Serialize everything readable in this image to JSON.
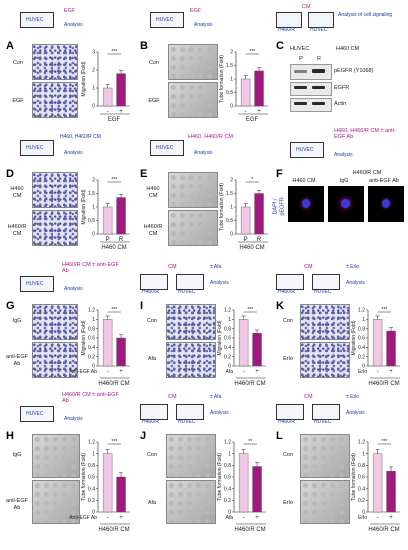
{
  "schematics": {
    "A": {
      "stim": "EGF",
      "cell": "HUVEC",
      "out": "Analysis"
    },
    "B": {
      "stim": "EGF",
      "cell": "HUVEC",
      "out": "Analysis"
    },
    "C": {
      "stim": "CM",
      "cell1": "H460/R",
      "cell2": "HUVEC",
      "out": "Analysis of cell signaling"
    },
    "D": {
      "stim": "H460, H460/R CM",
      "cell": "HUVEC",
      "out": "Analysis"
    },
    "E": {
      "stim": "H460, H460/R CM",
      "cell": "HUVEC",
      "out": "Analysis"
    },
    "F": {
      "stim": "H460, H460/R CM ± anti-EGF Ab",
      "cell": "HUVEC",
      "out": "Analysis"
    },
    "G": {
      "stim": "H460/R CM ± anti-EGF Ab",
      "cell": "HUVEC",
      "out": "Analysis"
    },
    "I": {
      "stim": "CM",
      "drug": "± Afa",
      "cell1": "H460/R",
      "cell2": "HUVEC",
      "out": "Analysis"
    },
    "K": {
      "stim": "CM",
      "drug": "± Erlo",
      "cell1": "H460/R",
      "cell2": "HUVEC",
      "out": "Analysis"
    },
    "H": {
      "stim": "H460/R CM ± anti-EGF Ab",
      "cell": "HUVEC",
      "out": "Analysis"
    },
    "J": {
      "stim": "CM",
      "drug": "± Afa",
      "cell1": "H460/R",
      "cell2": "HUVEC",
      "out": "Analysis"
    },
    "L": {
      "stim": "CM",
      "drug": "± Erlo",
      "cell1": "H460/R",
      "cell2": "HUVEC",
      "out": "Analysis"
    }
  },
  "panels": {
    "A": {
      "letter": "A",
      "rows": [
        "Con",
        "EGF"
      ]
    },
    "B": {
      "letter": "B",
      "rows": [
        "Con",
        "EGF"
      ]
    },
    "C": {
      "letter": "C",
      "title": "H460 CM",
      "lanes": [
        "P",
        "R"
      ],
      "rows": [
        "pEGFR (Y1068)",
        "EGFR",
        "Actin"
      ],
      "label": "HUVEC"
    },
    "D": {
      "letter": "D",
      "rows": [
        "H460\nCM",
        "H460/R\nCM"
      ]
    },
    "E": {
      "letter": "E",
      "rows": [
        "H460\nCM",
        "H460/R\nCM"
      ]
    },
    "F": {
      "letter": "F",
      "headers": [
        "H460 CM",
        "IgG",
        "anti-EGF Ab"
      ],
      "group": "H460/R CM",
      "ylab": "DAPI / pEGFR"
    },
    "G": {
      "letter": "G",
      "rows": [
        "IgG",
        "anti-EGF\nAb"
      ]
    },
    "H": {
      "letter": "H",
      "rows": [
        "IgG",
        "anti-EGF\nAb"
      ]
    },
    "I": {
      "letter": "I",
      "rows": [
        "Con",
        "Afa"
      ]
    },
    "J": {
      "letter": "J",
      "rows": [
        "Con",
        "Afa"
      ]
    },
    "K": {
      "letter": "K",
      "rows": [
        "Con",
        "Erlo"
      ]
    },
    "L": {
      "letter": "L",
      "rows": [
        "Con",
        "Erlo"
      ]
    }
  },
  "chart_data": [
    {
      "id": "A",
      "type": "bar",
      "ylabel": "Migration (Fold)",
      "ylim": [
        0,
        3
      ],
      "yticks": [
        0,
        1,
        2,
        3
      ],
      "tick_labels": [
        "-",
        "+"
      ],
      "xlabel": "EGF",
      "values": [
        1.0,
        1.8
      ],
      "sig": "***"
    },
    {
      "id": "B",
      "type": "bar",
      "ylabel": "Tube formation (Fold)",
      "ylim": [
        0,
        2
      ],
      "yticks": [
        0,
        0.5,
        1,
        1.5,
        2
      ],
      "tick_labels": [
        "-",
        "+"
      ],
      "xlabel": "EGF",
      "values": [
        1.0,
        1.3
      ],
      "sig": "***"
    },
    {
      "id": "D",
      "type": "bar",
      "ylabel": "Migration (Fold)",
      "ylim": [
        0,
        2
      ],
      "yticks": [
        0,
        0.5,
        1,
        1.5,
        2
      ],
      "tick_labels": [
        "P",
        "R"
      ],
      "xlabel": "H460 CM",
      "values": [
        1.0,
        1.35
      ],
      "sig": "***"
    },
    {
      "id": "E",
      "type": "bar",
      "ylabel": "Tube formation (Fold)",
      "ylim": [
        0,
        2
      ],
      "yticks": [
        0,
        0.5,
        1,
        1.5,
        2
      ],
      "tick_labels": [
        "P",
        "R"
      ],
      "xlabel": "H460 CM",
      "values": [
        1.0,
        1.5
      ],
      "sig": "*"
    },
    {
      "id": "G",
      "type": "bar",
      "ylabel": "Migration (Fold)",
      "ylim": [
        0,
        1.2
      ],
      "yticks": [
        0,
        0.2,
        0.4,
        0.6,
        0.8,
        1,
        1.2
      ],
      "tick_labels": [
        "-",
        "+"
      ],
      "prefix": "Anti-EGF Ab",
      "xlabel": "H460/R CM",
      "values": [
        1.0,
        0.6
      ],
      "sig": "***"
    },
    {
      "id": "I",
      "type": "bar",
      "ylabel": "Migration (Fold)",
      "ylim": [
        0,
        1.2
      ],
      "yticks": [
        0,
        0.2,
        0.4,
        0.6,
        0.8,
        1,
        1.2
      ],
      "tick_labels": [
        "-",
        "+"
      ],
      "prefix": "Afa",
      "xlabel": "H460/R CM",
      "values": [
        1.0,
        0.7
      ],
      "sig": "***"
    },
    {
      "id": "K",
      "type": "bar",
      "ylabel": "Migration (Fold)",
      "ylim": [
        0,
        1.2
      ],
      "yticks": [
        0,
        0.2,
        0.4,
        0.6,
        0.8,
        1,
        1.2
      ],
      "tick_labels": [
        "-",
        "+"
      ],
      "prefix": "Erlo",
      "xlabel": "H460/R CM",
      "values": [
        1.0,
        0.75
      ],
      "sig": "***"
    },
    {
      "id": "H",
      "type": "bar",
      "ylabel": "Tube formation (Fold)",
      "ylim": [
        0,
        1.2
      ],
      "yticks": [
        0,
        0.2,
        0.4,
        0.6,
        0.8,
        1,
        1.2
      ],
      "tick_labels": [
        "-",
        "+"
      ],
      "prefix": "Anti-EGF Ab",
      "xlabel": "H460/R CM",
      "values": [
        1.0,
        0.6
      ],
      "sig": "***"
    },
    {
      "id": "J",
      "type": "bar",
      "ylabel": "Tube formation (Fold)",
      "ylim": [
        0,
        1.2
      ],
      "yticks": [
        0,
        0.2,
        0.4,
        0.6,
        0.8,
        1,
        1.2
      ],
      "tick_labels": [
        "-",
        "+"
      ],
      "prefix": "Afa",
      "xlabel": "H460/R CM",
      "values": [
        1.0,
        0.78
      ],
      "sig": "**"
    },
    {
      "id": "L",
      "type": "bar",
      "ylabel": "Tube formation (Fold)",
      "ylim": [
        0,
        1.2
      ],
      "yticks": [
        0,
        0.2,
        0.4,
        0.6,
        0.8,
        1,
        1.2
      ],
      "tick_labels": [
        "-",
        "+"
      ],
      "prefix": "Erlo",
      "xlabel": "H460/R CM",
      "values": [
        1.0,
        0.7
      ],
      "sig": "***"
    }
  ],
  "colors": {
    "control": "#f0c8e6",
    "treat": "#a0197f",
    "stim": "#b0178a",
    "text": "#1a3aa3"
  }
}
